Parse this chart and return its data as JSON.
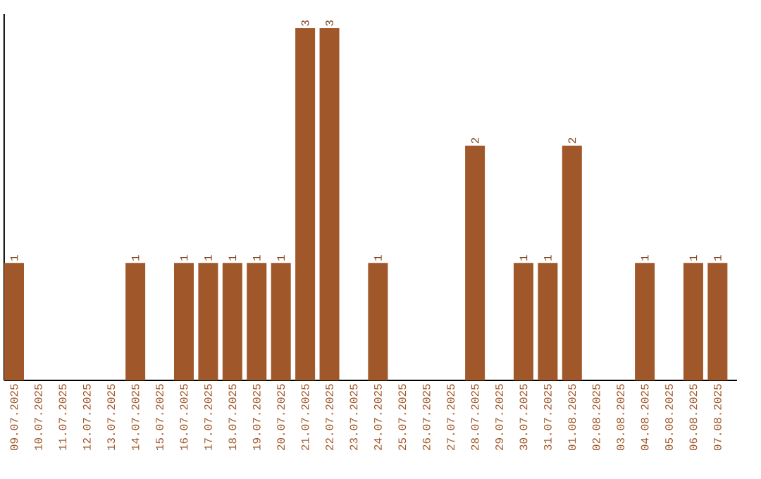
{
  "chart_data": {
    "type": "bar",
    "categories": [
      "09.07.2025",
      "10.07.2025",
      "11.07.2025",
      "12.07.2025",
      "13.07.2025",
      "14.07.2025",
      "15.07.2025",
      "16.07.2025",
      "17.07.2025",
      "18.07.2025",
      "19.07.2025",
      "20.07.2025",
      "21.07.2025",
      "22.07.2025",
      "23.07.2025",
      "24.07.2025",
      "25.07.2025",
      "26.07.2025",
      "27.07.2025",
      "28.07.2025",
      "29.07.2025",
      "30.07.2025",
      "31.07.2025",
      "01.08.2025",
      "02.08.2025",
      "03.08.2025",
      "04.08.2025",
      "05.08.2025",
      "06.08.2025",
      "07.08.2025"
    ],
    "values": [
      1,
      0,
      0,
      0,
      0,
      1,
      0,
      1,
      1,
      1,
      1,
      1,
      3,
      3,
      0,
      1,
      0,
      0,
      0,
      2,
      0,
      1,
      1,
      2,
      0,
      0,
      1,
      0,
      1,
      1
    ],
    "value_labels": [
      "1",
      null,
      null,
      null,
      null,
      "1",
      null,
      "1",
      "1",
      "1",
      "1",
      "1",
      "3",
      "3",
      null,
      "1",
      null,
      null,
      null,
      "2",
      null,
      "1",
      "1",
      "2",
      null,
      null,
      "1",
      null,
      "1",
      "1"
    ],
    "color": "#a0582a"
  }
}
